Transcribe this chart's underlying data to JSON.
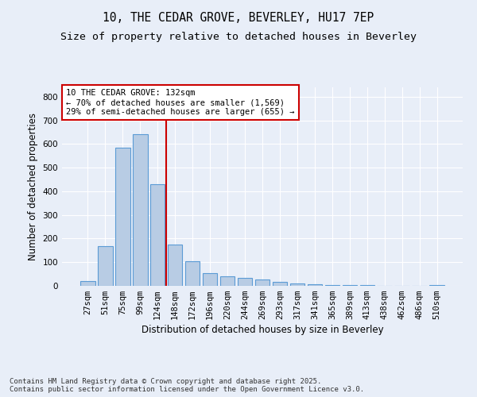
{
  "title1": "10, THE CEDAR GROVE, BEVERLEY, HU17 7EP",
  "title2": "Size of property relative to detached houses in Beverley",
  "xlabel": "Distribution of detached houses by size in Beverley",
  "ylabel": "Number of detached properties",
  "categories": [
    "27sqm",
    "51sqm",
    "75sqm",
    "99sqm",
    "124sqm",
    "148sqm",
    "172sqm",
    "196sqm",
    "220sqm",
    "244sqm",
    "269sqm",
    "293sqm",
    "317sqm",
    "341sqm",
    "365sqm",
    "389sqm",
    "413sqm",
    "438sqm",
    "462sqm",
    "486sqm",
    "510sqm"
  ],
  "values": [
    20,
    168,
    583,
    643,
    430,
    175,
    103,
    55,
    42,
    33,
    27,
    17,
    11,
    6,
    4,
    3,
    2,
    1,
    1,
    1,
    5
  ],
  "bar_color": "#b8cce4",
  "bar_edge_color": "#5b9bd5",
  "background_color": "#e8eef8",
  "grid_color": "#ffffff",
  "vline_x": 4.5,
  "vline_color": "#cc0000",
  "annotation_line1": "10 THE CEDAR GROVE: 132sqm",
  "annotation_line2": "← 70% of detached houses are smaller (1,569)",
  "annotation_line3": "29% of semi-detached houses are larger (655) →",
  "annotation_box_color": "#ffffff",
  "annotation_box_edge": "#cc0000",
  "ylim": [
    0,
    840
  ],
  "yticks": [
    0,
    100,
    200,
    300,
    400,
    500,
    600,
    700,
    800
  ],
  "footer_text": "Contains HM Land Registry data © Crown copyright and database right 2025.\nContains public sector information licensed under the Open Government Licence v3.0.",
  "title_fontsize": 10.5,
  "subtitle_fontsize": 9.5,
  "axis_label_fontsize": 8.5,
  "tick_fontsize": 7.5,
  "annotation_fontsize": 7.5,
  "footer_fontsize": 6.5
}
